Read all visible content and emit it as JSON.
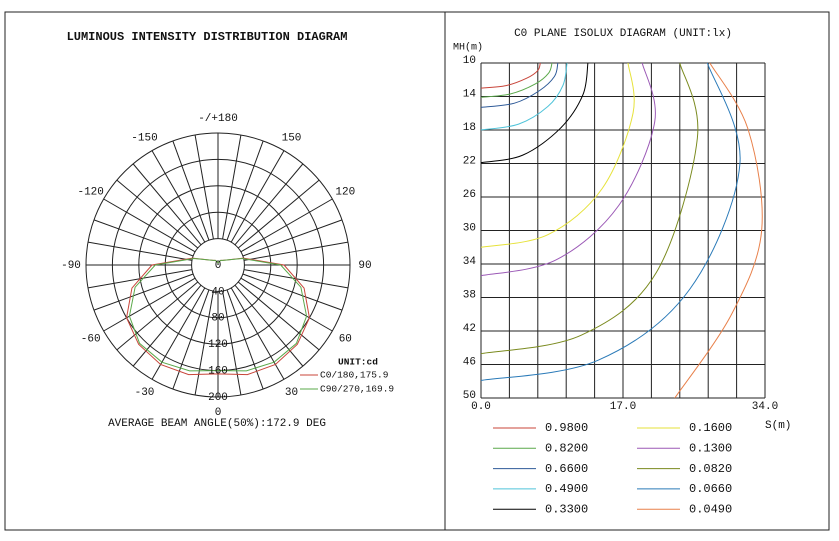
{
  "chart_data": [
    {
      "type": "polar",
      "title": "LUMINOUS INTENSITY DISTRIBUTION DIAGRAM",
      "unit_label": "UNIT:cd",
      "footer": "AVERAGE BEAM ANGLE(50%):172.9 DEG",
      "angle_ticks": [
        {
          "value": 180,
          "label": "-/+180"
        },
        150,
        120,
        90,
        60,
        30,
        0,
        -30,
        -60,
        -90,
        -120,
        -150
      ],
      "rlim": [
        0,
        200
      ],
      "rticks": [
        0,
        40,
        80,
        120,
        160,
        200
      ],
      "angles": [
        -180,
        -165,
        -150,
        -135,
        -120,
        -105,
        -90,
        -75,
        -60,
        -45,
        -30,
        -15,
        0,
        15,
        30,
        45,
        60,
        75,
        90,
        105,
        120,
        135,
        150,
        165,
        180
      ],
      "series": [
        {
          "name": "C0/180,175.9",
          "color": "#c8453a",
          "values": [
            3,
            5,
            8,
            10,
            15,
            40,
            100,
            135,
            160,
            170,
            174,
            172,
            165,
            172,
            174,
            170,
            160,
            135,
            100,
            40,
            15,
            10,
            8,
            5,
            3
          ]
        },
        {
          "name": "C90/270,169.9",
          "color": "#5aa84a",
          "values": [
            3,
            5,
            8,
            10,
            15,
            38,
            95,
            130,
            155,
            168,
            170,
            166,
            160,
            166,
            170,
            168,
            155,
            130,
            95,
            38,
            15,
            10,
            8,
            5,
            3
          ]
        }
      ]
    },
    {
      "type": "contour",
      "title": "C0 PLANE ISOLUX DIAGRAM (UNIT:lx)",
      "ylabel": "MH(m)",
      "xlabel": "S(m)",
      "xlim": [
        0,
        34
      ],
      "ylim": [
        10,
        50
      ],
      "y_inverted": true,
      "xticks": [
        {
          "value": 0,
          "label": "0.0"
        },
        {
          "value": 17,
          "label": "17.0"
        },
        {
          "value": 34,
          "label": "34.0"
        }
      ],
      "xgrid": [
        0,
        3.4,
        6.8,
        10.2,
        13.6,
        17,
        20.4,
        23.8,
        27.2,
        30.6,
        34
      ],
      "yticks": [
        10,
        14,
        18,
        22,
        26,
        30,
        34,
        38,
        42,
        46,
        50
      ],
      "series": [
        {
          "name": "0.9800",
          "color": "#c8453a",
          "x": [
            0,
            3,
            5.5,
            6.8,
            7.1
          ],
          "y": [
            13.0,
            12.7,
            11.8,
            10.9,
            10
          ]
        },
        {
          "name": "0.8200",
          "color": "#5aa84a",
          "x": [
            0,
            3.5,
            6.5,
            8.1,
            8.5
          ],
          "y": [
            14.1,
            13.7,
            12.5,
            11.2,
            10
          ]
        },
        {
          "name": "0.6600",
          "color": "#2e5a98",
          "x": [
            0,
            4,
            7,
            8.8,
            9.2
          ],
          "y": [
            15.3,
            14.8,
            13.3,
            11.6,
            10
          ]
        },
        {
          "name": "0.4900",
          "color": "#4fc3d9",
          "x": [
            0,
            4.5,
            8,
            9.8,
            10.3
          ],
          "y": [
            18.0,
            17.3,
            15.2,
            12.7,
            10
          ]
        },
        {
          "name": "0.3300",
          "color": "#000000",
          "x": [
            0,
            5,
            9.5,
            12.2,
            12.8
          ],
          "y": [
            21.9,
            21.0,
            17.8,
            13.8,
            10
          ]
        },
        {
          "name": "0.1600",
          "color": "#e6e23a",
          "x": [
            0,
            8,
            14.5,
            18.2,
            17.6
          ],
          "y": [
            32.0,
            30.5,
            25,
            16,
            10
          ]
        },
        {
          "name": "0.1300",
          "color": "#9b59b6",
          "x": [
            0,
            9,
            16.5,
            20.8,
            19.3
          ],
          "y": [
            35.4,
            33.5,
            27,
            17,
            10
          ]
        },
        {
          "name": "0.0820",
          "color": "#7a8a1e",
          "x": [
            0,
            12,
            21,
            25.9,
            23.8
          ],
          "y": [
            44.7,
            42.5,
            35,
            19,
            10
          ]
        },
        {
          "name": "0.0660",
          "color": "#2a7ab8",
          "x": [
            0,
            14,
            25,
            31,
            27.1
          ],
          "y": [
            47.9,
            45.5,
            37,
            22,
            10
          ]
        },
        {
          "name": "0.0490",
          "color": "#e8804a",
          "x": [
            23.2,
            30,
            33.6,
            32,
            27.4
          ],
          "y": [
            50,
            40,
            30,
            18,
            10
          ]
        }
      ]
    }
  ]
}
